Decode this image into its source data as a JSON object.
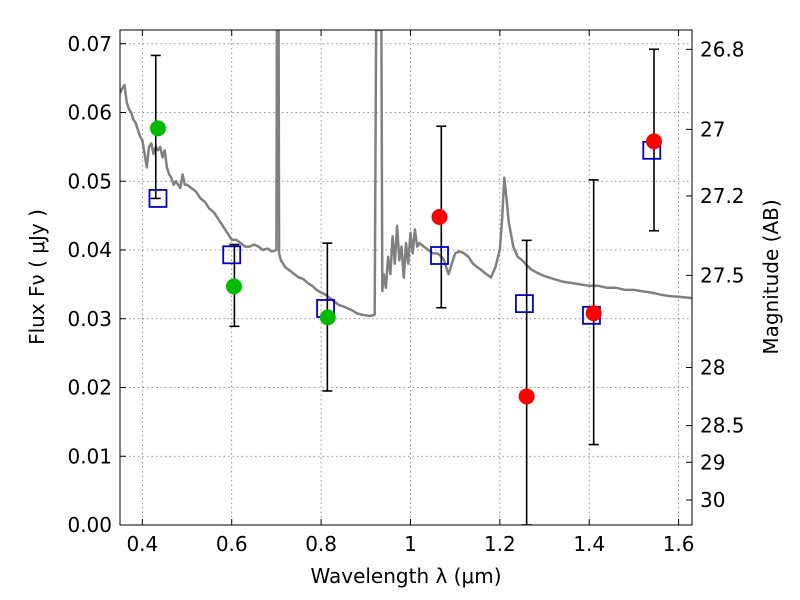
{
  "chart_data": {
    "type": "scatter",
    "title": "",
    "xlabel": "Wavelength  λ (μm)",
    "ylabel": "Flux  Fν  ( μJy )",
    "y2label": "Magnitude (AB)",
    "xlim": [
      0.35,
      1.63
    ],
    "ylim": [
      0.0,
      0.072
    ],
    "grid": true,
    "x_ticks": [
      {
        "value": 0.4,
        "label": "0.4"
      },
      {
        "value": 0.6,
        "label": "0.6"
      },
      {
        "value": 0.8,
        "label": "0.8"
      },
      {
        "value": 1.0,
        "label": "1"
      },
      {
        "value": 1.2,
        "label": "1.2"
      },
      {
        "value": 1.4,
        "label": "1.4"
      },
      {
        "value": 1.6,
        "label": "1.6"
      }
    ],
    "y_ticks": [
      {
        "value": 0.0,
        "label": "0.00"
      },
      {
        "value": 0.01,
        "label": "0.01"
      },
      {
        "value": 0.02,
        "label": "0.02"
      },
      {
        "value": 0.03,
        "label": "0.03"
      },
      {
        "value": 0.04,
        "label": "0.04"
      },
      {
        "value": 0.05,
        "label": "0.05"
      },
      {
        "value": 0.06,
        "label": "0.06"
      },
      {
        "value": 0.07,
        "label": "0.07"
      }
    ],
    "y2_ticks": [
      {
        "value": 26.8,
        "label": "26.8"
      },
      {
        "value": 27.0,
        "label": "27"
      },
      {
        "value": 27.2,
        "label": "27.2"
      },
      {
        "value": 27.5,
        "label": "27.5"
      },
      {
        "value": 28.0,
        "label": "28"
      },
      {
        "value": 28.5,
        "label": "28.5"
      },
      {
        "value": 29.0,
        "label": "29"
      },
      {
        "value": 30.0,
        "label": "30"
      }
    ],
    "series": [
      {
        "kind": "line",
        "color": "#808080",
        "points": [
          [
            0.35,
            0.0628
          ],
          [
            0.355,
            0.0635
          ],
          [
            0.36,
            0.064
          ],
          [
            0.365,
            0.0615
          ],
          [
            0.37,
            0.0605
          ],
          [
            0.375,
            0.06
          ],
          [
            0.38,
            0.059
          ],
          [
            0.385,
            0.0585
          ],
          [
            0.39,
            0.0575
          ],
          [
            0.395,
            0.0565
          ],
          [
            0.4,
            0.056
          ],
          [
            0.405,
            0.054
          ],
          [
            0.41,
            0.052
          ],
          [
            0.415,
            0.055
          ],
          [
            0.42,
            0.0555
          ],
          [
            0.425,
            0.054
          ],
          [
            0.43,
            0.055
          ],
          [
            0.435,
            0.0545
          ],
          [
            0.44,
            0.055
          ],
          [
            0.445,
            0.0535
          ],
          [
            0.45,
            0.0545
          ],
          [
            0.455,
            0.052
          ],
          [
            0.46,
            0.051
          ],
          [
            0.465,
            0.0505
          ],
          [
            0.47,
            0.0495
          ],
          [
            0.475,
            0.05
          ],
          [
            0.48,
            0.0495
          ],
          [
            0.485,
            0.049
          ],
          [
            0.49,
            0.051
          ],
          [
            0.495,
            0.0495
          ],
          [
            0.5,
            0.0495
          ],
          [
            0.51,
            0.049
          ],
          [
            0.52,
            0.0485
          ],
          [
            0.53,
            0.0475
          ],
          [
            0.54,
            0.047
          ],
          [
            0.55,
            0.046
          ],
          [
            0.56,
            0.0455
          ],
          [
            0.57,
            0.0445
          ],
          [
            0.58,
            0.0435
          ],
          [
            0.59,
            0.0425
          ],
          [
            0.6,
            0.0415
          ],
          [
            0.61,
            0.0415
          ],
          [
            0.62,
            0.041
          ],
          [
            0.63,
            0.0405
          ],
          [
            0.64,
            0.0405
          ],
          [
            0.65,
            0.0408
          ],
          [
            0.66,
            0.0405
          ],
          [
            0.67,
            0.04
          ],
          [
            0.68,
            0.0402
          ],
          [
            0.69,
            0.0398
          ],
          [
            0.7,
            0.04
          ],
          [
            0.701,
            0.072
          ],
          [
            0.705,
            0.072
          ],
          [
            0.706,
            0.0395
          ],
          [
            0.71,
            0.0385
          ],
          [
            0.72,
            0.0375
          ],
          [
            0.73,
            0.037
          ],
          [
            0.74,
            0.0365
          ],
          [
            0.75,
            0.036
          ],
          [
            0.76,
            0.0358
          ],
          [
            0.77,
            0.0352
          ],
          [
            0.78,
            0.0348
          ],
          [
            0.79,
            0.0342
          ],
          [
            0.8,
            0.0338
          ],
          [
            0.81,
            0.0335
          ],
          [
            0.82,
            0.033
          ],
          [
            0.83,
            0.0325
          ],
          [
            0.84,
            0.032
          ],
          [
            0.85,
            0.0318
          ],
          [
            0.86,
            0.0315
          ],
          [
            0.87,
            0.0312
          ],
          [
            0.88,
            0.0308
          ],
          [
            0.89,
            0.0306
          ],
          [
            0.9,
            0.0305
          ],
          [
            0.91,
            0.0304
          ],
          [
            0.92,
            0.0306
          ],
          [
            0.923,
            0.072
          ],
          [
            0.935,
            0.072
          ],
          [
            0.937,
            0.034
          ],
          [
            0.94,
            0.0365
          ],
          [
            0.945,
            0.0345
          ],
          [
            0.95,
            0.039
          ],
          [
            0.955,
            0.0365
          ],
          [
            0.96,
            0.042
          ],
          [
            0.965,
            0.038
          ],
          [
            0.97,
            0.0435
          ],
          [
            0.975,
            0.0385
          ],
          [
            0.98,
            0.0405
          ],
          [
            0.985,
            0.036
          ],
          [
            0.99,
            0.041
          ],
          [
            0.995,
            0.038
          ],
          [
            1.0,
            0.0425
          ],
          [
            1.005,
            0.0395
          ],
          [
            1.01,
            0.043
          ],
          [
            1.015,
            0.0405
          ],
          [
            1.02,
            0.041
          ],
          [
            1.03,
            0.0405
          ],
          [
            1.04,
            0.04
          ],
          [
            1.05,
            0.0395
          ],
          [
            1.06,
            0.0395
          ],
          [
            1.07,
            0.039
          ],
          [
            1.075,
            0.0385
          ],
          [
            1.08,
            0.0375
          ],
          [
            1.085,
            0.0365
          ],
          [
            1.09,
            0.0375
          ],
          [
            1.095,
            0.0385
          ],
          [
            1.1,
            0.0395
          ],
          [
            1.11,
            0.0398
          ],
          [
            1.12,
            0.0395
          ],
          [
            1.13,
            0.039
          ],
          [
            1.14,
            0.038
          ],
          [
            1.15,
            0.0375
          ],
          [
            1.16,
            0.037
          ],
          [
            1.17,
            0.0365
          ],
          [
            1.18,
            0.036
          ],
          [
            1.19,
            0.0375
          ],
          [
            1.2,
            0.04
          ],
          [
            1.205,
            0.0445
          ],
          [
            1.21,
            0.0505
          ],
          [
            1.215,
            0.0475
          ],
          [
            1.22,
            0.044
          ],
          [
            1.23,
            0.0405
          ],
          [
            1.24,
            0.039
          ],
          [
            1.25,
            0.0385
          ],
          [
            1.26,
            0.0378
          ],
          [
            1.27,
            0.0372
          ],
          [
            1.28,
            0.0368
          ],
          [
            1.29,
            0.0365
          ],
          [
            1.3,
            0.0362
          ],
          [
            1.32,
            0.0358
          ],
          [
            1.34,
            0.0354
          ],
          [
            1.36,
            0.0352
          ],
          [
            1.38,
            0.035
          ],
          [
            1.4,
            0.0348
          ],
          [
            1.42,
            0.0348
          ],
          [
            1.44,
            0.0345
          ],
          [
            1.46,
            0.0345
          ],
          [
            1.48,
            0.0342
          ],
          [
            1.5,
            0.0342
          ],
          [
            1.52,
            0.034
          ],
          [
            1.54,
            0.0338
          ],
          [
            1.56,
            0.0335
          ],
          [
            1.58,
            0.0333
          ],
          [
            1.6,
            0.0332
          ],
          [
            1.63,
            0.033
          ]
        ]
      },
      {
        "kind": "errorbars",
        "color": "#000000",
        "points": [
          {
            "x": 0.43,
            "low": 0.0475,
            "high": 0.0683
          },
          {
            "x": 0.606,
            "low": 0.0289,
            "high": 0.0408
          },
          {
            "x": 0.814,
            "low": 0.0195,
            "high": 0.041
          },
          {
            "x": 1.069,
            "low": 0.0316,
            "high": 0.058
          },
          {
            "x": 1.26,
            "low": 0.0,
            "high": 0.0414
          },
          {
            "x": 1.41,
            "low": 0.0117,
            "high": 0.0502
          },
          {
            "x": 1.545,
            "low": 0.0428,
            "high": 0.0692
          }
        ]
      },
      {
        "kind": "squares",
        "color": "#0000cc",
        "points": [
          [
            0.435,
            0.0475
          ],
          [
            0.6,
            0.0393
          ],
          [
            0.81,
            0.0315
          ],
          [
            1.065,
            0.0392
          ],
          [
            1.255,
            0.0322
          ],
          [
            1.405,
            0.0305
          ],
          [
            1.54,
            0.0545
          ]
        ]
      },
      {
        "kind": "circles",
        "color": "#00bb00",
        "points": [
          [
            0.435,
            0.0577
          ],
          [
            0.605,
            0.0347
          ],
          [
            0.815,
            0.0302
          ]
        ]
      },
      {
        "kind": "circles",
        "color": "#ff0000",
        "points": [
          [
            1.065,
            0.0448
          ],
          [
            1.26,
            0.0187
          ],
          [
            1.41,
            0.0308
          ],
          [
            1.545,
            0.0558
          ]
        ]
      }
    ]
  }
}
